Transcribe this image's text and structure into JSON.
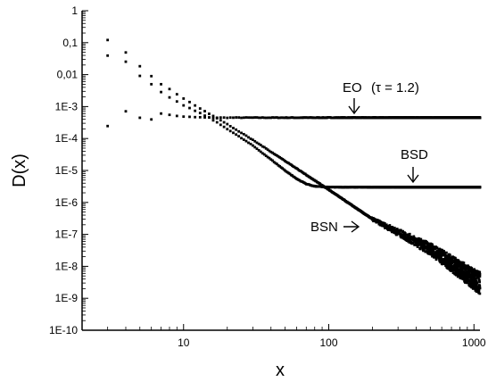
{
  "chart_data": {
    "type": "scatter",
    "xlabel": "x",
    "ylabel": "D(x)",
    "xscale": "log",
    "yscale": "log",
    "xlim": [
      2,
      1100
    ],
    "ylim": [
      1e-10,
      1
    ],
    "x_tick_values": [
      10,
      100,
      1000
    ],
    "x_tick_labels": [
      "10",
      "100",
      "1000"
    ],
    "y_tick_values": [
      1,
      0.1,
      0.01,
      0.001,
      0.0001,
      1e-05,
      1e-06,
      1e-07,
      1e-08,
      1e-09,
      1e-10
    ],
    "y_tick_labels": [
      "1",
      "0,1",
      "0,01",
      "1E-3",
      "1E-4",
      "1E-5",
      "1E-6",
      "1E-7",
      "1E-8",
      "1E-9",
      "1E-10"
    ],
    "grid": false,
    "series": [
      {
        "name": "EO",
        "x": [
          3,
          4,
          5,
          6,
          7,
          8,
          10,
          15,
          20,
          50,
          100,
          200,
          500,
          1000,
          1100
        ],
        "y": [
          0.00025,
          0.0007,
          0.00045,
          0.0004,
          0.0006,
          0.00055,
          0.00048,
          0.00045,
          0.00045,
          0.00045,
          0.00045,
          0.00045,
          0.00045,
          0.00045,
          0.00045
        ]
      },
      {
        "name": "BSD",
        "x": [
          3,
          4,
          5,
          6,
          7,
          8,
          10,
          15,
          20,
          30,
          40,
          50,
          60,
          70,
          80,
          100,
          200,
          500,
          1000,
          1100
        ],
        "y": [
          0.04,
          0.025,
          0.009,
          0.005,
          0.0028,
          0.0019,
          0.0011,
          0.00045,
          0.0002,
          6e-05,
          2.2e-05,
          1e-05,
          5.5e-06,
          3.8e-06,
          3.2e-06,
          3e-06,
          3e-06,
          3e-06,
          3e-06,
          3e-06
        ]
      },
      {
        "name": "BSN",
        "x": [
          3,
          4,
          5,
          6,
          7,
          8,
          10,
          15,
          20,
          30,
          50,
          100,
          200,
          500,
          1000,
          1100
        ],
        "y": [
          0.12,
          0.05,
          0.018,
          0.009,
          0.005,
          0.0035,
          0.0018,
          0.0006,
          0.00028,
          9e-05,
          2e-05,
          2.5e-06,
          3e-07,
          3.5e-08,
          4e-09,
          3e-09
        ]
      }
    ],
    "annotations": {
      "eo_label": "EO",
      "eo_param": "(τ = 1.2)",
      "bsd_label": "BSD",
      "bsn_label": "BSN"
    }
  }
}
